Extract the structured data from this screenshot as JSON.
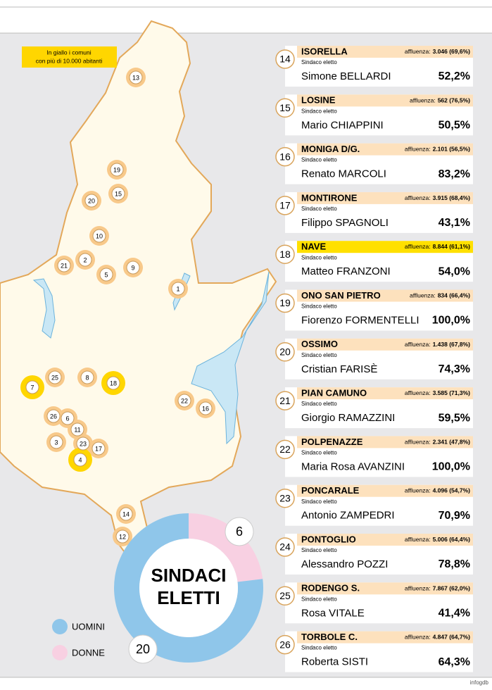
{
  "note": [
    "In giallo i comuni",
    "con più di 10.000 abitanti"
  ],
  "role_label": "Sindaco eletto",
  "turnout_label": "affluenza:",
  "entries": [
    {
      "number": "14",
      "name": "ISORELLA",
      "turnout": "3.046 (69,6%)",
      "mayor": "Simone BELLARDI",
      "share": "52,2%",
      "highlight": false
    },
    {
      "number": "15",
      "name": "LOSINE",
      "turnout": "562 (76,5%)",
      "mayor": "Mario CHIAPPINI",
      "share": "50,5%",
      "highlight": false
    },
    {
      "number": "16",
      "name": "MONIGA D/G.",
      "turnout": "2.101 (56,5%)",
      "mayor": "Renato MARCOLI",
      "share": "83,2%",
      "highlight": false
    },
    {
      "number": "17",
      "name": "MONTIRONE",
      "turnout": "3.915 (68,4%)",
      "mayor": "Filippo SPAGNOLI",
      "share": "43,1%",
      "highlight": false
    },
    {
      "number": "18",
      "name": "NAVE",
      "turnout": "8.844 (61,1%)",
      "mayor": "Matteo FRANZONI",
      "share": "54,0%",
      "highlight": true
    },
    {
      "number": "19",
      "name": "ONO SAN PIETRO",
      "turnout": "834 (66,4%)",
      "mayor": "Fiorenzo FORMENTELLI",
      "share": "100,0%",
      "highlight": false
    },
    {
      "number": "20",
      "name": "OSSIMO",
      "turnout": "1.438 (67,8%)",
      "mayor": "Cristian FARISÈ",
      "share": "74,3%",
      "highlight": false
    },
    {
      "number": "21",
      "name": "PIAN CAMUNO",
      "turnout": "3.585 (71,3%)",
      "mayor": "Giorgio RAMAZZINI",
      "share": "59,5%",
      "highlight": false
    },
    {
      "number": "22",
      "name": "POLPENAZZE",
      "turnout": "2.341 (47,8%)",
      "mayor": "Maria Rosa AVANZINI",
      "share": "100,0%",
      "highlight": false
    },
    {
      "number": "23",
      "name": "PONCARALE",
      "turnout": "4.096 (54,7%)",
      "mayor": "Antonio ZAMPEDRI",
      "share": "70,9%",
      "highlight": false
    },
    {
      "number": "24",
      "name": "PONTOGLIO",
      "turnout": "5.006 (64,4%)",
      "mayor": "Alessandro POZZI",
      "share": "78,8%",
      "highlight": false
    },
    {
      "number": "25",
      "name": "RODENGO S.",
      "turnout": "7.867 (62,0%)",
      "mayor": "Rosa VITALE",
      "share": "41,4%",
      "highlight": false
    },
    {
      "number": "26",
      "name": "TORBOLE C.",
      "turnout": "4.847 (64,7%)",
      "mayor": "Roberta SISTI",
      "share": "64,3%",
      "highlight": false
    }
  ],
  "map_markers": [
    {
      "label": "13",
      "highlight": false
    },
    {
      "label": "19",
      "highlight": false
    },
    {
      "label": "15",
      "highlight": false
    },
    {
      "label": "20",
      "highlight": false
    },
    {
      "label": "10",
      "highlight": false
    },
    {
      "label": "2",
      "highlight": false
    },
    {
      "label": "21",
      "highlight": false
    },
    {
      "label": "5",
      "highlight": false
    },
    {
      "label": "9",
      "highlight": false
    },
    {
      "label": "1",
      "highlight": false
    },
    {
      "label": "25",
      "highlight": false
    },
    {
      "label": "8",
      "highlight": false
    },
    {
      "label": "18",
      "highlight": true
    },
    {
      "label": "7",
      "highlight": true
    },
    {
      "label": "26",
      "highlight": false
    },
    {
      "label": "6",
      "highlight": false
    },
    {
      "label": "11",
      "highlight": false
    },
    {
      "label": "3",
      "highlight": false
    },
    {
      "label": "23",
      "highlight": false
    },
    {
      "label": "17",
      "highlight": false
    },
    {
      "label": "4",
      "highlight": true
    },
    {
      "label": "22",
      "highlight": false
    },
    {
      "label": "16",
      "highlight": false
    },
    {
      "label": "14",
      "highlight": false
    },
    {
      "label": "12",
      "highlight": false
    }
  ],
  "summary": {
    "title": [
      "SINDACI",
      "ELETTI"
    ],
    "series": [
      {
        "name": "UOMINI",
        "color": "#8fc6ea",
        "value": 20
      },
      {
        "name": "DONNE",
        "color": "#f8d0e2",
        "value": 6
      }
    ]
  },
  "credit": "infogdb"
}
